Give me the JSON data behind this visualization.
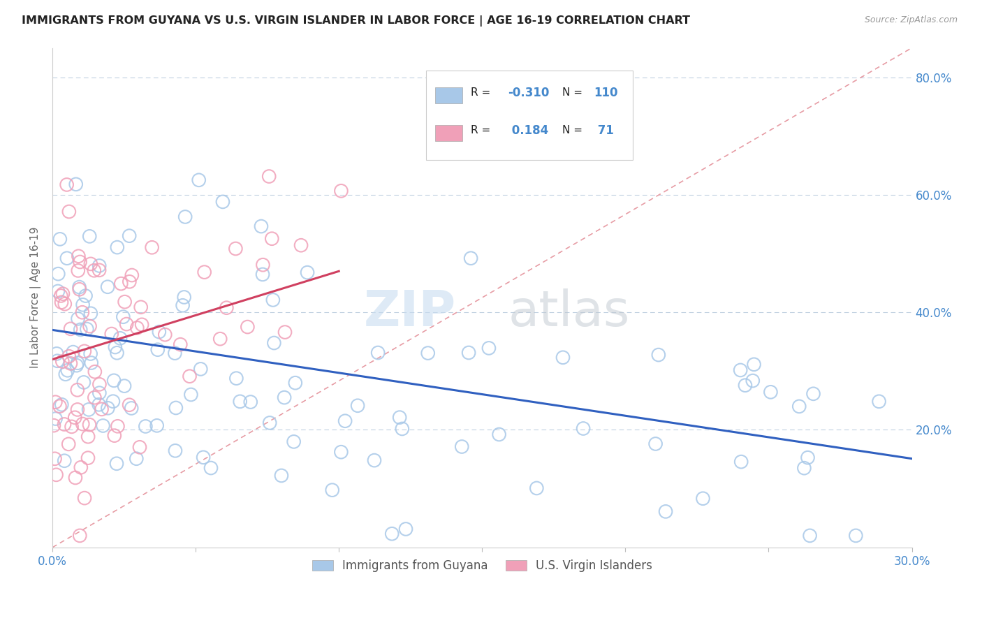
{
  "title": "IMMIGRANTS FROM GUYANA VS U.S. VIRGIN ISLANDER IN LABOR FORCE | AGE 16-19 CORRELATION CHART",
  "source_text": "Source: ZipAtlas.com",
  "ylabel": "In Labor Force | Age 16-19",
  "xlim": [
    0.0,
    0.3
  ],
  "ylim": [
    0.0,
    0.85
  ],
  "ytick_values": [
    0.2,
    0.4,
    0.6,
    0.8
  ],
  "ytick_labels_right": [
    "20.0%",
    "40.0%",
    "60.0%",
    "80.0%"
  ],
  "blue_R": -0.31,
  "blue_N": 110,
  "pink_R": 0.184,
  "pink_N": 71,
  "blue_color": "#a8c8e8",
  "pink_color": "#f0a0b8",
  "blue_label": "Immigrants from Guyana",
  "pink_label": "U.S. Virgin Islanders",
  "trend_blue_color": "#3060c0",
  "trend_pink_color": "#d04060",
  "background_color": "#ffffff",
  "grid_color": "#c0d0e0",
  "title_color": "#222222",
  "axis_label_color": "#4488cc",
  "legend_R_color_blue": "#4488cc",
  "legend_R_color_pink": "#4488cc",
  "diag_line_color": "#e8a0a8",
  "watermark_zip_color": "#c8ddf0",
  "watermark_atlas_color": "#c0c8d0"
}
